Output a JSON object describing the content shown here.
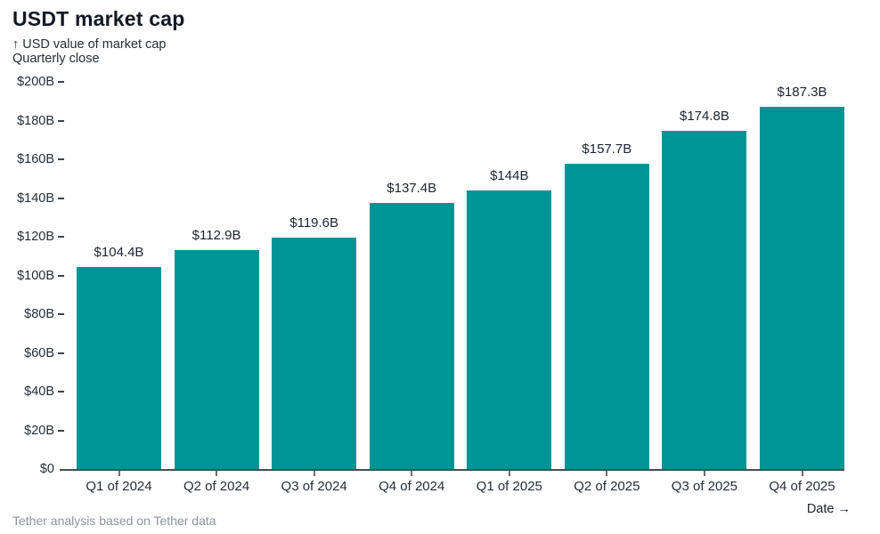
{
  "header": {
    "title": "USDT market cap",
    "subtitle_line1": "↑ USD value of market cap",
    "subtitle_line2": "Quarterly close"
  },
  "chart_data": {
    "type": "bar",
    "title": "USDT market cap",
    "ylabel": "USD value of market cap",
    "xlabel": "Date",
    "categories": [
      "Q1 of 2024",
      "Q2 of 2024",
      "Q3 of 2024",
      "Q4 of 2024",
      "Q1 of 2025",
      "Q2 of 2025",
      "Q3 of 2025",
      "Q4 of 2025"
    ],
    "values": [
      104.4,
      112.9,
      119.6,
      137.4,
      144,
      157.7,
      174.8,
      187.3
    ],
    "value_labels": [
      "$104.4B",
      "$112.9B",
      "$119.6B",
      "$137.4B",
      "$144B",
      "$157.7B",
      "$174.8B",
      "$187.3B"
    ],
    "ylim": [
      0,
      200
    ],
    "yticks": [
      0,
      20,
      40,
      60,
      80,
      100,
      120,
      140,
      160,
      180,
      200
    ],
    "ytick_labels": [
      "$0",
      "$20B",
      "$40B",
      "$60B",
      "$80B",
      "$100B",
      "$120B",
      "$140B",
      "$160B",
      "$180B",
      "$200B"
    ],
    "grid": false,
    "legend": "none",
    "bar_color": "#009496"
  },
  "footer": {
    "source": "Tether analysis based on Tether data",
    "xaxis_label": "Date →"
  },
  "colors": {
    "bar": "#009496",
    "title_text": "#121924",
    "axis_text": "#262d36",
    "baseline": "#474d55",
    "source_text": "#8e939c",
    "background": "#ffffff"
  }
}
